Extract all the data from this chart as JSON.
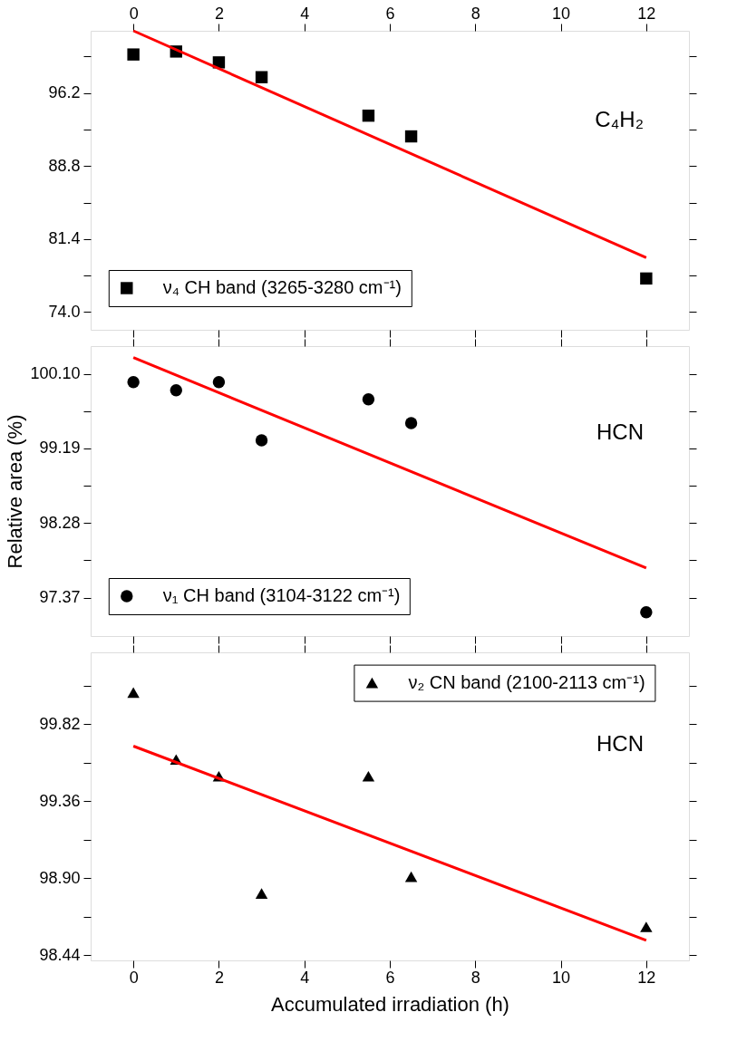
{
  "chart_data": [
    {
      "type": "scatter",
      "xlim": [
        -1,
        13
      ],
      "xticks": [
        0,
        2,
        4,
        6,
        8,
        10,
        12
      ],
      "tick_labels": "y",
      "x2lim": [
        -1,
        13
      ],
      "x2ticks": [
        0,
        2,
        4,
        6,
        8,
        10,
        12
      ],
      "ylim": [
        72.2,
        102.5
      ],
      "yticks": [
        {
          "value": 74.0,
          "label": "74.0"
        },
        {
          "value": 77.7,
          "label": null
        },
        81.4,
        {
          "value": 85.1,
          "label": null
        },
        88.8,
        {
          "value": 92.5,
          "label": null
        },
        96.2,
        {
          "value": 99.9,
          "label": null
        }
      ],
      "legend": "bottom left",
      "annotations": [
        "C₄H₂"
      ],
      "series": [
        {
          "name": "ν₄ CH band (3265-3280 cm⁻¹)",
          "marker": "square",
          "color": "#000000",
          "x": [
            0,
            1,
            2,
            3,
            5.5,
            6.5,
            12
          ],
          "values": [
            100.1,
            100.4,
            99.3,
            97.8,
            93.9,
            91.8,
            77.4
          ]
        },
        {
          "type": "line",
          "color": "#ff0000",
          "x": [
            0,
            12
          ],
          "values": [
            102.5,
            79.5
          ]
        }
      ]
    },
    {
      "type": "scatter",
      "xlim": [
        -1,
        13
      ],
      "xticks": [
        0,
        2,
        4,
        6,
        8,
        10,
        12
      ],
      "tick_labels": "y",
      "ylim": [
        96.9,
        100.44
      ],
      "yticks": [
        97.37,
        {
          "value": 97.825,
          "label": null
        },
        98.28,
        {
          "value": 98.735,
          "label": null
        },
        99.19,
        {
          "value": 99.645,
          "label": null
        },
        {
          "value": 100.1,
          "label": "100.10"
        }
      ],
      "ylabel": "Relative area (%)",
      "legend": "bottom left",
      "annotations": [
        "HCN"
      ],
      "series": [
        {
          "name": "ν₁ CH band (3104-3122 cm⁻¹)",
          "marker": "circle",
          "color": "#000000",
          "x": [
            0,
            1,
            2,
            3,
            5.5,
            6.5,
            12
          ],
          "values": [
            100.0,
            99.9,
            100.0,
            99.29,
            99.79,
            99.5,
            97.19
          ]
        },
        {
          "type": "line",
          "color": "#ff0000",
          "x": [
            0,
            12
          ],
          "values": [
            100.3,
            97.73
          ]
        }
      ]
    },
    {
      "type": "scatter",
      "xlim": [
        -1,
        13
      ],
      "xticks": [
        0,
        2,
        4,
        6,
        8,
        10,
        12
      ],
      "xlabel": "Accumulated irradiation (h)",
      "ylim": [
        98.41,
        100.25
      ],
      "yticks": [
        98.44,
        {
          "value": 98.67,
          "label": null
        },
        {
          "value": 98.9,
          "label": "98.90"
        },
        {
          "value": 99.13,
          "label": null
        },
        99.36,
        {
          "value": 99.59,
          "label": null
        },
        99.82,
        {
          "value": 100.05,
          "label": null
        }
      ],
      "legend": "top right",
      "annotations": [
        "HCN"
      ],
      "series": [
        {
          "name": "ν₂ CN band (2100-2113 cm⁻¹)",
          "marker": "triangle",
          "color": "#000000",
          "x": [
            0,
            1,
            2,
            3,
            5.5,
            6.5,
            12
          ],
          "values": [
            100.01,
            99.61,
            99.51,
            98.81,
            99.51,
            98.91,
            98.61
          ]
        },
        {
          "type": "line",
          "color": "#ff0000",
          "x": [
            0,
            12
          ],
          "values": [
            99.69,
            98.53
          ]
        }
      ]
    }
  ]
}
